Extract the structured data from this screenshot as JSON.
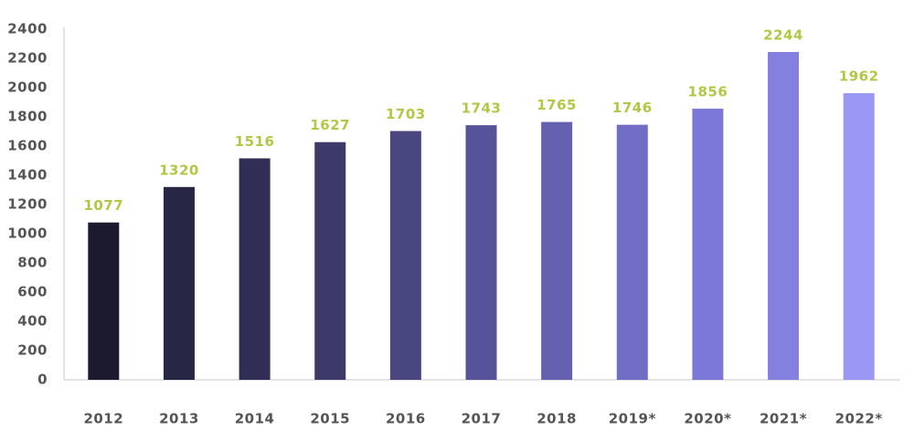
{
  "chart_data": {
    "type": "bar",
    "categories": [
      "2012",
      "2013",
      "2014",
      "2015",
      "2016",
      "2017",
      "2018",
      "2019*",
      "2020*",
      "2021*",
      "2022*"
    ],
    "values": [
      1077,
      1320,
      1516,
      1627,
      1703,
      1743,
      1765,
      1746,
      1856,
      2244,
      1962
    ],
    "colors": [
      "#1c1a2e",
      "#272645",
      "#302e56",
      "#3d3a6a",
      "#4a4680",
      "#57539a",
      "#6561b0",
      "#716dc4",
      "#7c78d8",
      "#8480e0",
      "#9b97f5"
    ],
    "value_label_color": "#b3c744",
    "ylim": [
      0,
      2400
    ],
    "yticks": [
      0,
      200,
      400,
      600,
      800,
      1000,
      1200,
      1400,
      1600,
      1800,
      2000,
      2200,
      2400
    ],
    "grid": false
  }
}
